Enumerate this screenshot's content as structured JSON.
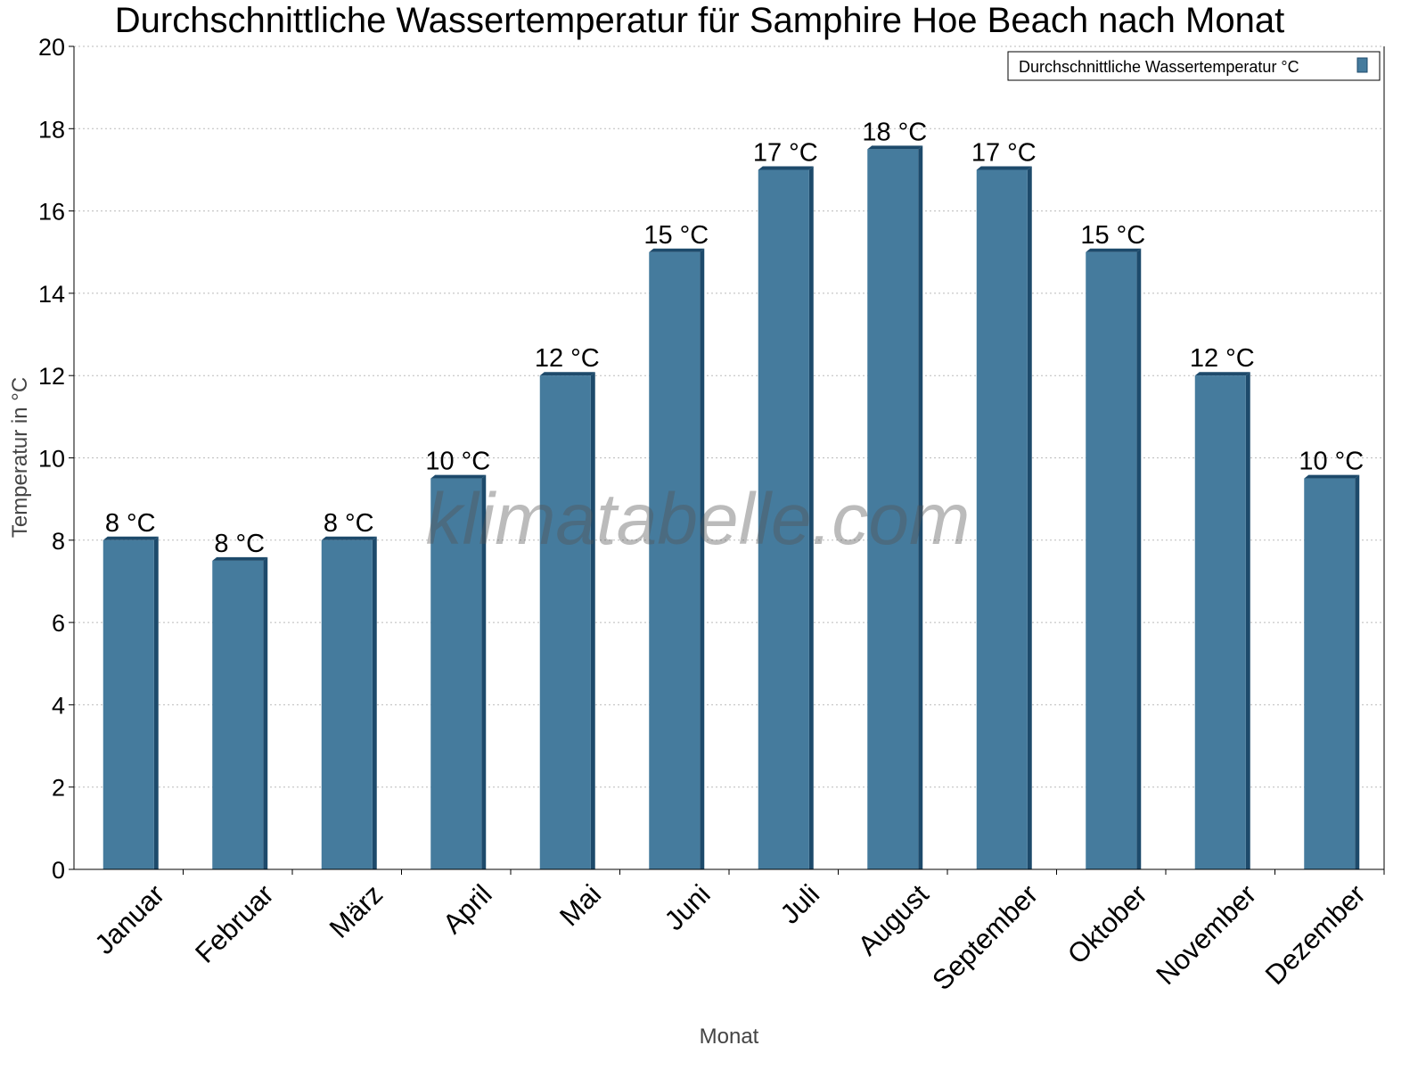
{
  "chart_data": {
    "type": "bar",
    "title": "Durchschnittliche Wassertemperatur für Samphire Hoe Beach nach Monat",
    "xlabel": "Monat",
    "ylabel": "Temperatur in °C",
    "ylim": [
      0,
      20
    ],
    "yticks": [
      0,
      2,
      4,
      6,
      8,
      10,
      12,
      14,
      16,
      18,
      20
    ],
    "grid": true,
    "legend_position": "top-right",
    "categories": [
      "Januar",
      "Februar",
      "März",
      "April",
      "Mai",
      "Juni",
      "Juli",
      "August",
      "September",
      "Oktober",
      "November",
      "Dezember"
    ],
    "series": [
      {
        "name": "Durchschnittliche Wassertemperatur °C",
        "values": [
          8,
          7.5,
          8,
          9.5,
          12,
          15,
          17,
          17.5,
          17,
          15,
          12,
          9.5
        ],
        "labels": [
          "8 °C",
          "8 °C",
          "8 °C",
          "10 °C",
          "12 °C",
          "15 °C",
          "17 °C",
          "18 °C",
          "17 °C",
          "15 °C",
          "12 °C",
          "10 °C"
        ],
        "color": "#457b9d",
        "side_color": "#1d4a6b"
      }
    ],
    "watermark": "klimatabelle.com"
  }
}
